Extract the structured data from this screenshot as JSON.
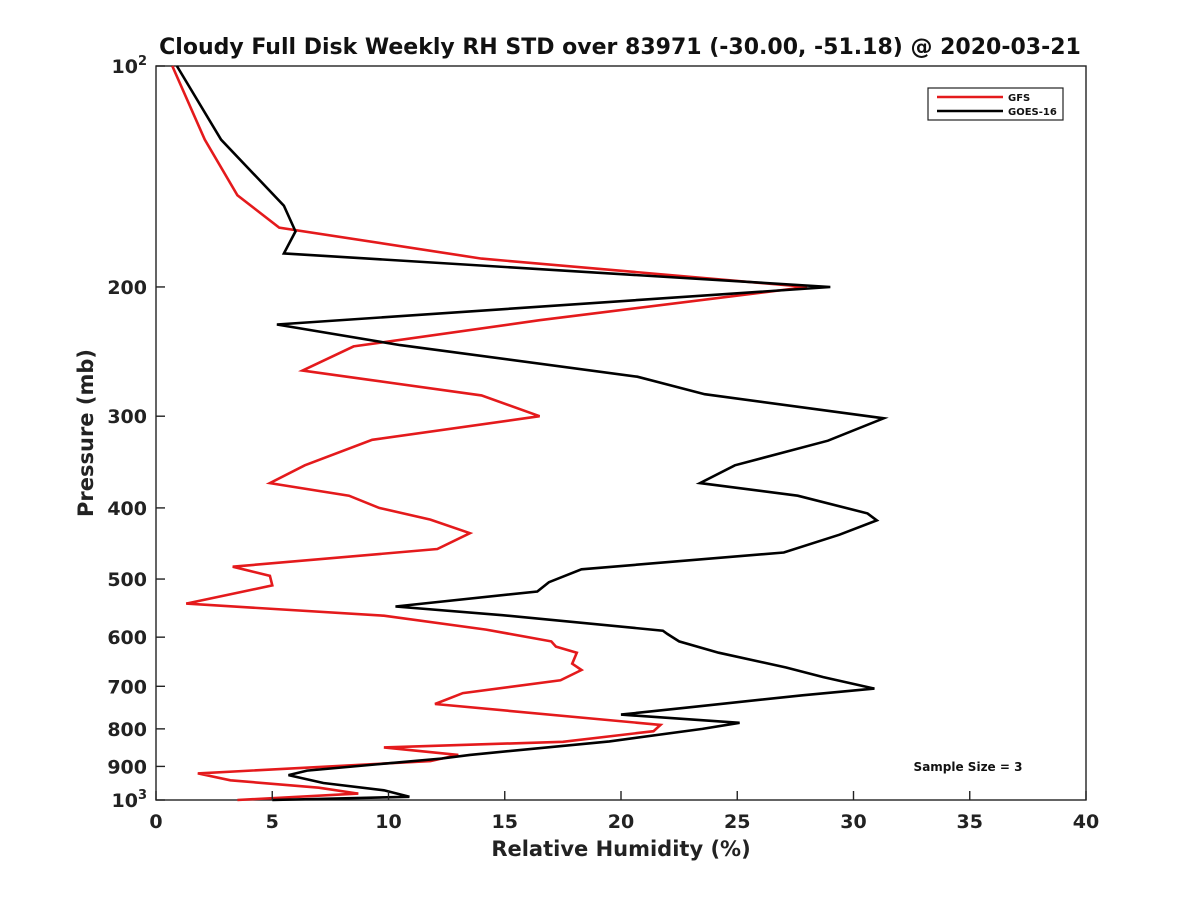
{
  "chart_data": {
    "type": "line",
    "title": "Cloudy Full Disk Weekly RH STD over 83971 (-30.00, -51.18) @ 2020-03-21",
    "xlabel": "Relative Humidity (%)",
    "ylabel": "Pressure (mb)",
    "xlim": [
      0,
      40
    ],
    "ylim": [
      100,
      1000
    ],
    "yscale": "log",
    "yreversed": true,
    "grid": false,
    "legend_position": "top-right",
    "xticks": [
      "0",
      "5",
      "10",
      "15",
      "20",
      "25",
      "30",
      "35",
      "40"
    ],
    "xtick_values": [
      0,
      5,
      10,
      15,
      20,
      25,
      30,
      35,
      40
    ],
    "yticks": [
      {
        "value": 100,
        "base": "10",
        "exp": "2"
      },
      {
        "value": 200,
        "base": "200",
        "exp": ""
      },
      {
        "value": 300,
        "base": "300",
        "exp": ""
      },
      {
        "value": 400,
        "base": "400",
        "exp": ""
      },
      {
        "value": 500,
        "base": "500",
        "exp": ""
      },
      {
        "value": 600,
        "base": "600",
        "exp": ""
      },
      {
        "value": 700,
        "base": "700",
        "exp": ""
      },
      {
        "value": 800,
        "base": "800",
        "exp": ""
      },
      {
        "value": 900,
        "base": "900",
        "exp": ""
      },
      {
        "value": 1000,
        "base": "10",
        "exp": "3"
      }
    ],
    "annotation": "Sample Size = 3",
    "series": [
      {
        "name": "GFS",
        "color": "#e41a1c",
        "x": [
          0.7,
          2.1,
          3.5,
          5.3,
          14,
          28,
          16.5,
          8.5,
          6.3,
          14,
          16.5,
          9.3,
          6.4,
          4.9,
          8.3,
          9.6,
          11.8,
          13.5,
          12.1,
          3.3,
          4.9,
          5.0,
          1.3,
          9.8,
          14.2,
          17.0,
          17.2,
          18.1,
          17.9,
          18.3,
          17.4,
          13.2,
          12.0,
          21.7,
          21.4,
          17.5,
          9.8,
          13.0,
          11.8,
          1.8,
          3.2,
          7.0,
          8.7,
          3.5
        ],
        "y": [
          100,
          126,
          150,
          166,
          183,
          200,
          222,
          241,
          260,
          281,
          300,
          323,
          350,
          370,
          385,
          400,
          415,
          433,
          455,
          481,
          495,
          510,
          540,
          561,
          586,
          608,
          618,
          630,
          652,
          665,
          687,
          715,
          740,
          790,
          806,
          833,
          848,
          868,
          885,
          920,
          940,
          962,
          980,
          1000
        ]
      },
      {
        "name": "GOES-16",
        "color": "#000000",
        "x": [
          0.9,
          2.8,
          5.5,
          6.0,
          5.5,
          29,
          5.2,
          10.5,
          20.7,
          23.6,
          31.3,
          28.9,
          24.9,
          23.4,
          27.6,
          30.6,
          31.0,
          29.4,
          27.0,
          18.3,
          16.9,
          16.4,
          10.3,
          14.9,
          21.8,
          22.0,
          22.5,
          24.2,
          27.1,
          28.7,
          30.9,
          27.8,
          22.9,
          20.0,
          25.1,
          23.5,
          19.5,
          13.5,
          12.3,
          6.5,
          5.7,
          7.2,
          9.8,
          10.9,
          5.0
        ],
        "y": [
          100,
          126,
          155,
          168,
          180,
          200,
          225,
          240,
          265,
          280,
          302,
          324,
          350,
          370,
          385,
          407,
          416,
          435,
          460,
          485,
          505,
          520,
          545,
          560,
          588,
          594,
          608,
          630,
          660,
          680,
          705,
          720,
          748,
          765,
          785,
          800,
          832,
          868,
          878,
          912,
          925,
          948,
          970,
          990,
          1000
        ]
      }
    ]
  }
}
